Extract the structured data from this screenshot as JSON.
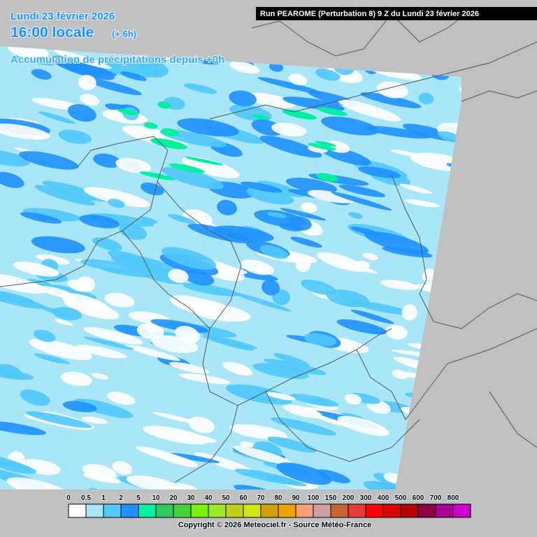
{
  "header": {
    "date": "Lundi 23 février 2026",
    "time": "16:00 locale",
    "lead": "(+ 6h)",
    "product": "Accumulation de précipitations depuis +0h",
    "run": "Run PEAROME (Perturbation 8) 9 Z du Lundi 23 février 2026"
  },
  "legend": {
    "labels": [
      0,
      0.5,
      1,
      2,
      5,
      10,
      20,
      30,
      40,
      50,
      60,
      70,
      80,
      90,
      100,
      150,
      200,
      300,
      400,
      500,
      600,
      700,
      800
    ],
    "colors": [
      "#ffffff",
      "#aae6fa",
      "#50c8fa",
      "#1e90ff",
      "#00f0a0",
      "#32c864",
      "#46d232",
      "#78f00a",
      "#a0e628",
      "#bed214",
      "#d2e614",
      "#d2a000",
      "#f0a000",
      "#f5a078",
      "#d2a0a0",
      "#c86432",
      "#e63c3c",
      "#ff0000",
      "#dc0000",
      "#b40000",
      "#8c0046",
      "#aa0096",
      "#cc00cc"
    ]
  },
  "footer": {
    "copyright": "Copyright © 2026 Meteociel.fr - Source Météo-France"
  }
}
